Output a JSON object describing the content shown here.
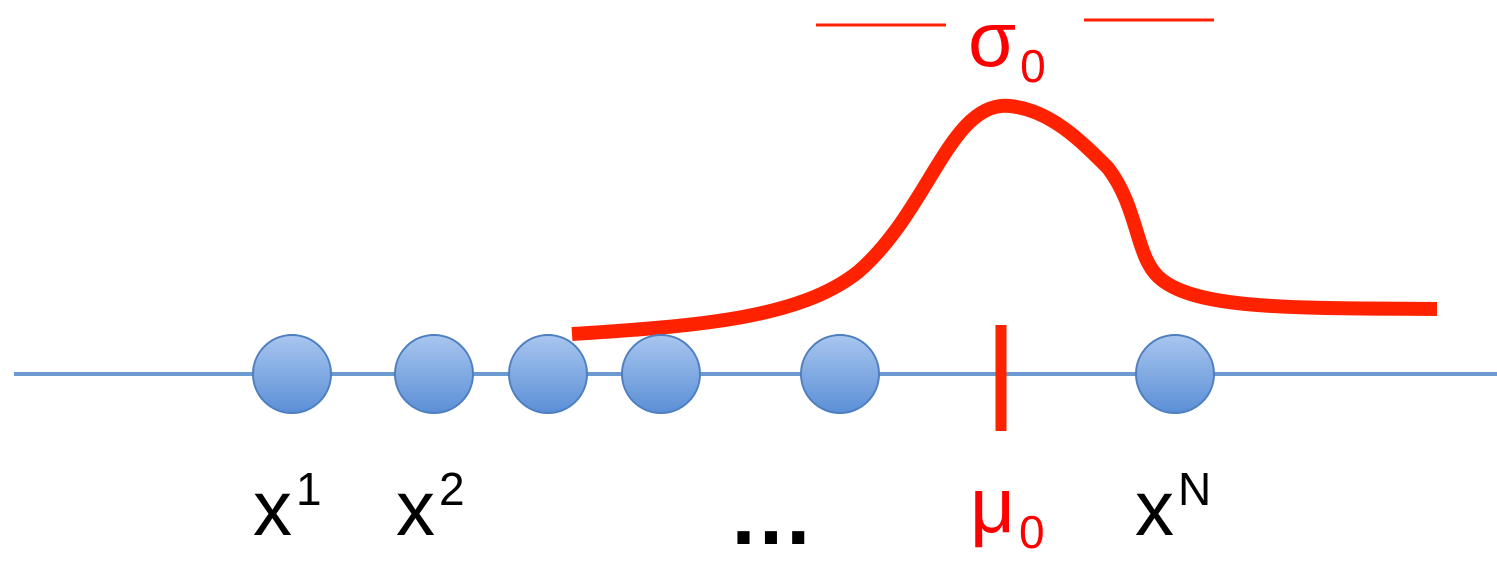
{
  "colors": {
    "axis": "#6a9ad0",
    "point_fill_top": "#a9c6ef",
    "point_fill_bottom": "#5b8fd6",
    "point_stroke": "#4f7fc0",
    "curve": "#ff2200",
    "label_red": "#ff0000",
    "label_black": "#000000"
  },
  "labels": {
    "x1": {
      "base": "x",
      "sup": "1"
    },
    "x2": {
      "base": "x",
      "sup": "2"
    },
    "ellipsis": "…",
    "mu": {
      "base": "μ",
      "sub": "0"
    },
    "xN": {
      "base": "x",
      "sup": "N"
    },
    "sigma": {
      "base": "σ",
      "sub": "0"
    }
  }
}
